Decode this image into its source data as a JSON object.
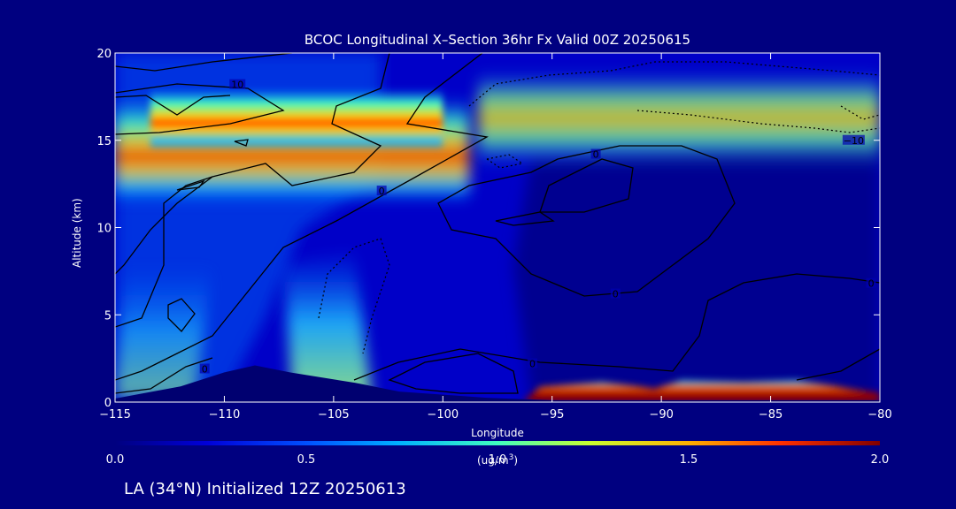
{
  "chart_data": {
    "type": "heatmap",
    "title": "BCOC Longitudinal X–Section 36hr  Fx Valid 00Z 20250615",
    "xlabel": "Longitude",
    "ylabel": "Altitude (km)",
    "xlim": [
      -115,
      -80
    ],
    "ylim": [
      0,
      20
    ],
    "x_ticks": [
      -115,
      -110,
      -105,
      -100,
      -95,
      -90,
      -85,
      -80
    ],
    "x_tick_labels": [
      "−115",
      "−110",
      "−105",
      "−100",
      "−95",
      "−90",
      "−85",
      "−80"
    ],
    "y_ticks": [
      0,
      5,
      10,
      15,
      20
    ],
    "y_tick_labels": [
      "0",
      "5",
      "10",
      "15",
      "20"
    ],
    "colorbar": {
      "min": 0.0,
      "max": 2.0,
      "ticks": [
        0.0,
        0.5,
        1.0,
        1.5,
        2.0
      ],
      "tick_labels": [
        "0.0",
        "0.5",
        "1.0",
        "1.5",
        "2.0"
      ],
      "label_line1": "(ug/m",
      "label_sup": "3",
      "label_line2": ")"
    },
    "contour_labels": [
      {
        "text": "10",
        "lon": -109.4,
        "alt": 18.2
      },
      {
        "text": "0",
        "lon": -102.8,
        "alt": 12.1
      },
      {
        "text": "0",
        "lon": -93.0,
        "alt": 14.2
      },
      {
        "text": "−10",
        "lon": -81.2,
        "alt": 15.0
      },
      {
        "text": "0",
        "lon": -110.9,
        "alt": 1.9
      },
      {
        "text": "0",
        "lon": -95.9,
        "alt": 2.2
      },
      {
        "text": "0",
        "lon": -92.1,
        "alt": 6.2
      },
      {
        "text": "0",
        "lon": -80.4,
        "alt": 6.8
      }
    ],
    "terrain_profile": [
      [
        -115,
        0.2
      ],
      [
        -112,
        0.9
      ],
      [
        -110,
        1.7
      ],
      [
        -108.6,
        2.1
      ],
      [
        -107,
        1.7
      ],
      [
        -104,
        1.1
      ],
      [
        -102,
        0.6
      ],
      [
        -98,
        0.25
      ],
      [
        -95,
        0.1
      ],
      [
        -80,
        0.1
      ]
    ],
    "high_concentration_layers": [
      {
        "lon_range": [
          -112,
          -99
        ],
        "alt_range": [
          15.5,
          17.5
        ],
        "value_max": 1.6
      },
      {
        "lon_range": [
          -96,
          -80
        ],
        "alt_range": [
          15.0,
          17.5
        ],
        "value_max": 1.1
      },
      {
        "lon_range": [
          -95,
          -81
        ],
        "alt_range": [
          0,
          1.0
        ],
        "value_max": 2.0
      },
      {
        "lon_range": [
          -107,
          -104
        ],
        "alt_range": [
          0,
          9
        ],
        "value_max": 0.9
      }
    ]
  },
  "footer": "LA (34°N) Initialized 12Z 20250613"
}
